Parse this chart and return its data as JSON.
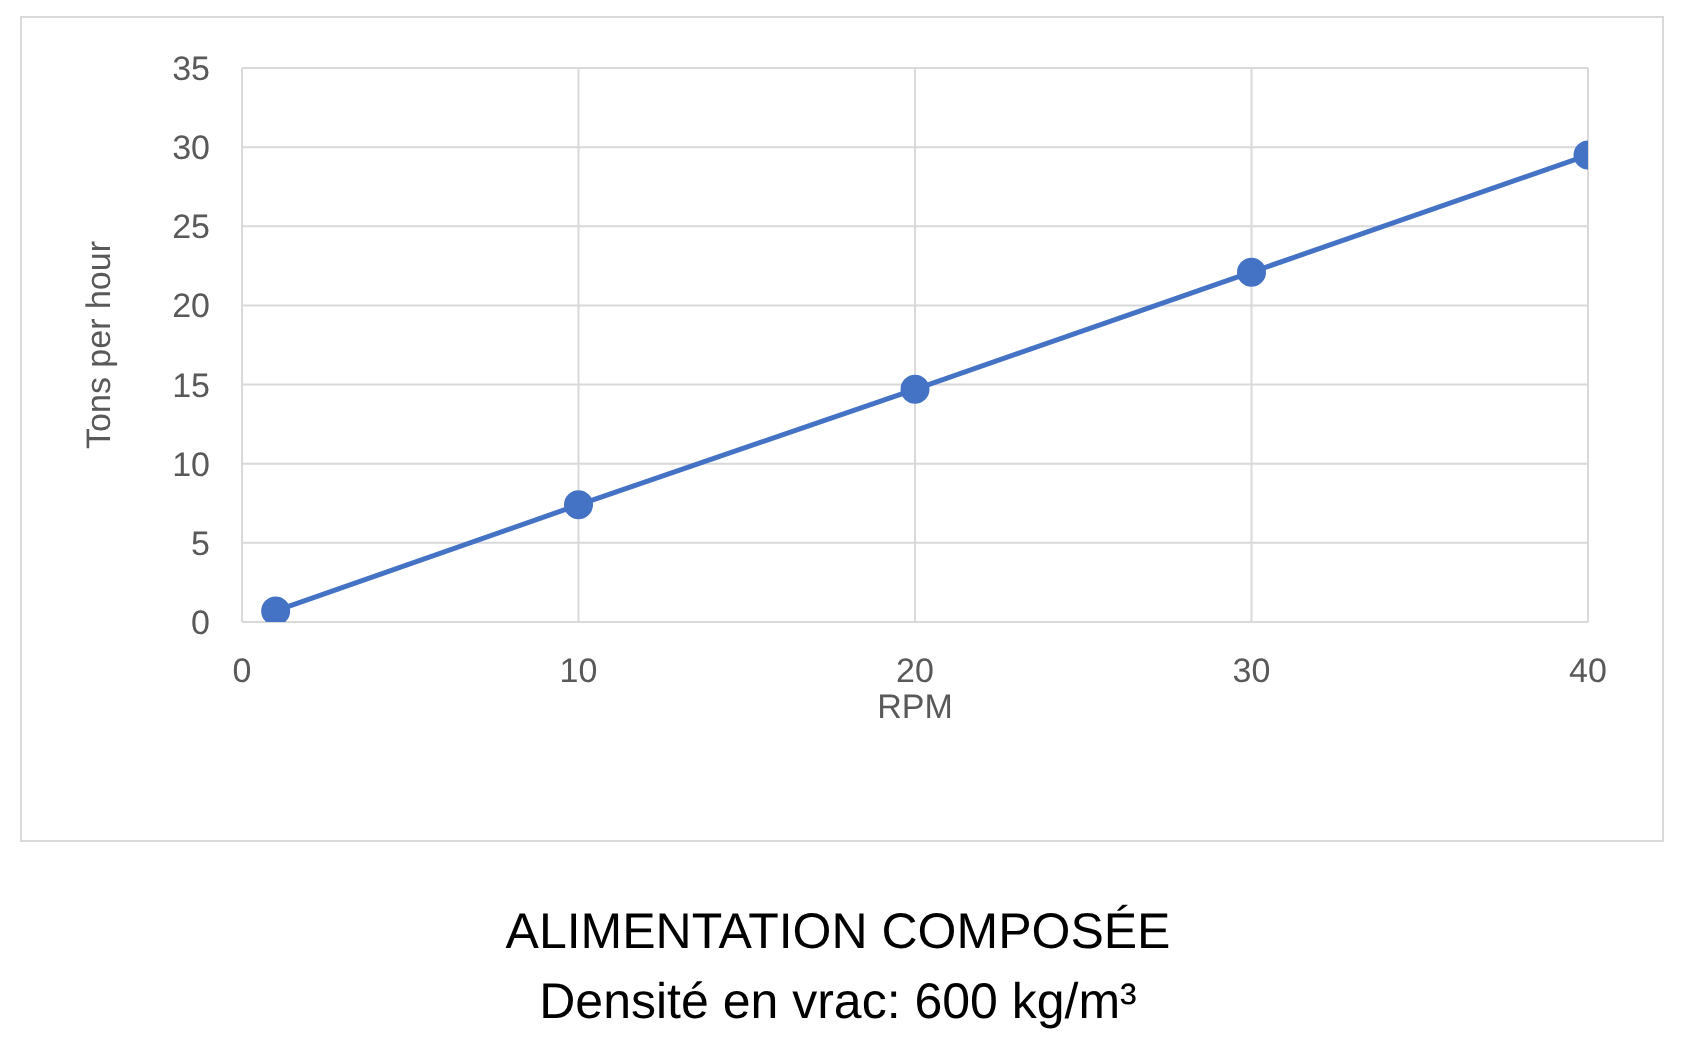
{
  "chart_data": {
    "type": "line",
    "title": "ALIMENTATION COMPOSÉE",
    "subtitle": "Densité en vrac: 600 kg/m³",
    "xlabel": "RPM",
    "ylabel": "Tons per hour",
    "x": [
      1,
      10,
      20,
      30,
      40
    ],
    "series": [
      {
        "color": "#4472c4",
        "values": [
          0.7,
          7.4,
          14.7,
          22.1,
          29.5
        ]
      }
    ],
    "xlim": [
      0,
      40
    ],
    "xticks": [
      0,
      10,
      20,
      30,
      40
    ],
    "ylim": [
      0,
      35
    ],
    "yticks": [
      0,
      5,
      10,
      15,
      20,
      25,
      30,
      35
    ],
    "grid": true,
    "legend": false,
    "marker": "circle",
    "line_style": "solid"
  }
}
